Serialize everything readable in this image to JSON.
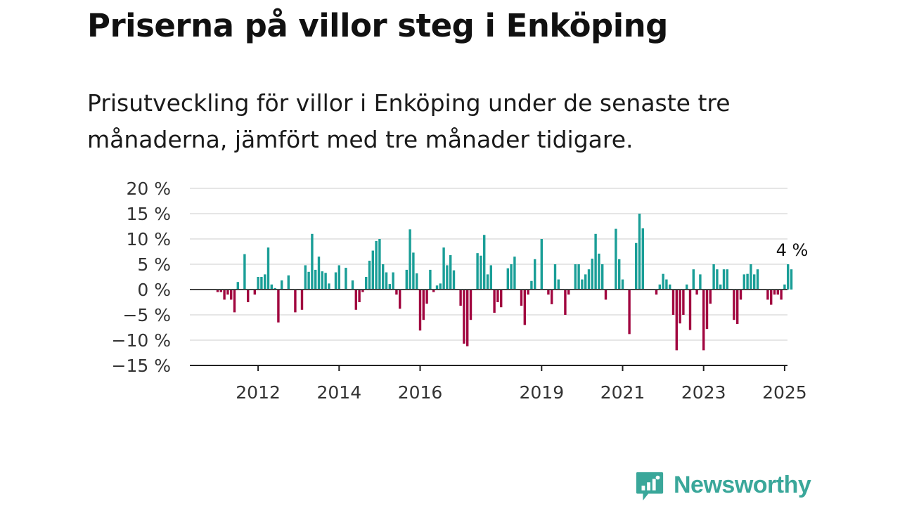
{
  "title": "Priserna på villor steg i Enköping",
  "subtitle": "Prisutveckling för villor i Enköping under de senaste tre månaderna, jämfört med tre månader tidigare.",
  "logo": {
    "name": "Newsworthy",
    "icon": "newsworthy-logo-icon",
    "color": "#3aa79a"
  },
  "colors": {
    "positive": "#1a9e97",
    "negative": "#a1063f",
    "grid": "#dddddd",
    "axis": "#222222"
  },
  "chart_data": {
    "type": "bar",
    "x_start": "2011-01",
    "frequency": "monthly",
    "y_unit": "%",
    "ylim": [
      -15,
      20
    ],
    "y_ticks": [
      20,
      15,
      10,
      5,
      0,
      -5,
      -10,
      -15
    ],
    "y_tick_labels": [
      "20 %",
      "15 %",
      "10 %",
      "5 %",
      "0 %",
      "−5 %",
      "−10 %",
      "−15 %"
    ],
    "x_tick_labels": [
      "2012",
      "2014",
      "2016",
      "2019",
      "2021",
      "2023",
      "2025"
    ],
    "x_tick_months": [
      "2012-01",
      "2014-01",
      "2016-01",
      "2019-01",
      "2021-01",
      "2023-01",
      "2025-01"
    ],
    "grid": true,
    "last_value_label": "4 %",
    "values": [
      -0.5,
      -0.5,
      -2,
      -1,
      -2,
      -4.5,
      1.5,
      0,
      7,
      -2.5,
      0,
      -1,
      2.5,
      2.5,
      3,
      8.3,
      1,
      0.3,
      -6.5,
      1.8,
      0,
      2.8,
      0,
      -4.5,
      0,
      -4,
      4.8,
      3.5,
      11,
      3.9,
      6.5,
      3.6,
      3.3,
      1.2,
      0,
      3.4,
      4.8,
      0,
      4.3,
      0,
      1.8,
      -4,
      -2.5,
      -0.5,
      2.5,
      5.7,
      7.7,
      9.6,
      10,
      5,
      3.4,
      1.1,
      3.4,
      -1,
      -3.8,
      0,
      3.9,
      11.9,
      7.3,
      3.2,
      -8.1,
      -6,
      -2.8,
      3.9,
      -0.5,
      0.8,
      1.2,
      8.3,
      4.8,
      6.8,
      3.8,
      0,
      -3.2,
      -10.7,
      -11.2,
      -6,
      0,
      7.2,
      6.7,
      10.8,
      3,
      4.8,
      -4.6,
      -2.5,
      -3.5,
      0,
      4.2,
      5,
      6.5,
      0,
      -3.2,
      -7,
      -1,
      1.7,
      6,
      0,
      10,
      0,
      -1,
      -2.9,
      5,
      2,
      0,
      -5,
      -1,
      0,
      5,
      5,
      2,
      3,
      4,
      6.1,
      11,
      7.1,
      5,
      -2,
      0,
      0,
      12,
      6,
      2,
      0,
      -8.8,
      0,
      9.2,
      15,
      12.1,
      0,
      0,
      0,
      -1,
      1,
      3.1,
      2,
      1,
      -5,
      -12,
      -6.7,
      -5,
      1,
      -8,
      4,
      -1,
      3,
      -12,
      -7.8,
      -2.8,
      5,
      4,
      1,
      4,
      4,
      0,
      -6,
      -6.8,
      -2,
      3,
      3.1,
      5,
      3,
      4,
      0,
      0,
      -2,
      -3,
      -1,
      -1,
      -2,
      1,
      5,
      4
    ]
  }
}
